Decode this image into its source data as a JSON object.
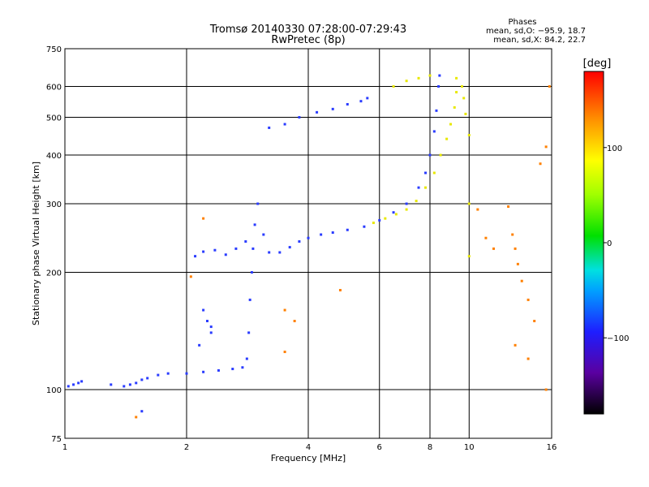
{
  "chart_data": {
    "type": "scatter",
    "title": "Tromsø 20140330 07:28:00-07:29:43",
    "subtitle": "RwPretec (8p)",
    "xlabel": "Frequency [MHz]",
    "ylabel": "Stationary phase Virtual Height [km]",
    "x_scale": "log",
    "y_scale": "log",
    "xlim": [
      1,
      16
    ],
    "ylim": [
      75,
      750
    ],
    "x_ticks": [
      1,
      2,
      4,
      6,
      8,
      10,
      16
    ],
    "y_ticks": [
      75,
      100,
      200,
      300,
      400,
      500,
      600,
      750
    ],
    "grid": true,
    "phase_stats": {
      "title": "Phases",
      "o_mode": "mean, sd,O: −95.9, 18.7",
      "x_mode": "mean, sd,X:  84.2, 22.7"
    },
    "colorbar": {
      "label": "[deg]",
      "min": -180,
      "max": 180,
      "ticks": [
        100,
        0,
        -100
      ],
      "tick_labels": [
        "100",
        "0",
        "−100"
      ]
    },
    "series": [
      {
        "mode": "O",
        "phase_deg": -100,
        "color": "#2a3cff",
        "points": [
          [
            1.02,
            102
          ],
          [
            1.05,
            103
          ],
          [
            1.08,
            104
          ],
          [
            1.1,
            105
          ],
          [
            1.3,
            103
          ],
          [
            1.4,
            102
          ],
          [
            1.45,
            103
          ],
          [
            1.5,
            104
          ],
          [
            1.55,
            106
          ],
          [
            1.6,
            107
          ],
          [
            1.7,
            109
          ],
          [
            1.8,
            110
          ],
          [
            2.0,
            110
          ],
          [
            2.2,
            111
          ],
          [
            2.4,
            112
          ],
          [
            2.6,
            113
          ],
          [
            2.75,
            114
          ],
          [
            2.82,
            120
          ],
          [
            2.85,
            140
          ],
          [
            2.87,
            170
          ],
          [
            2.9,
            200
          ],
          [
            2.92,
            230
          ],
          [
            2.95,
            265
          ],
          [
            3.0,
            300
          ],
          [
            3.1,
            250
          ],
          [
            3.2,
            225
          ],
          [
            3.4,
            225
          ],
          [
            3.6,
            232
          ],
          [
            3.8,
            240
          ],
          [
            4.0,
            245
          ],
          [
            4.3,
            250
          ],
          [
            4.6,
            253
          ],
          [
            5.0,
            257
          ],
          [
            5.5,
            262
          ],
          [
            6.0,
            272
          ],
          [
            6.5,
            285
          ],
          [
            7.0,
            300
          ],
          [
            7.5,
            330
          ],
          [
            7.8,
            360
          ],
          [
            8.0,
            400
          ],
          [
            8.2,
            460
          ],
          [
            8.3,
            520
          ],
          [
            8.4,
            600
          ],
          [
            8.45,
            640
          ],
          [
            3.2,
            470
          ],
          [
            3.5,
            480
          ],
          [
            3.8,
            500
          ],
          [
            4.2,
            515
          ],
          [
            4.6,
            525
          ],
          [
            5.0,
            540
          ],
          [
            5.4,
            550
          ],
          [
            5.6,
            560
          ],
          [
            2.1,
            220
          ],
          [
            2.2,
            226
          ],
          [
            2.35,
            228
          ],
          [
            2.5,
            222
          ],
          [
            2.65,
            230
          ],
          [
            2.8,
            240
          ],
          [
            2.2,
            160
          ],
          [
            2.25,
            150
          ],
          [
            2.3,
            145
          ],
          [
            2.15,
            130
          ],
          [
            1.55,
            88
          ],
          [
            2.3,
            140
          ]
        ]
      },
      {
        "mode": "X",
        "phase_deg": 100,
        "color": "#e8e800",
        "points": [
          [
            5.8,
            268
          ],
          [
            6.2,
            275
          ],
          [
            6.6,
            282
          ],
          [
            7.0,
            290
          ],
          [
            7.4,
            305
          ],
          [
            7.8,
            330
          ],
          [
            8.2,
            360
          ],
          [
            8.5,
            400
          ],
          [
            8.8,
            440
          ],
          [
            9.0,
            480
          ],
          [
            9.2,
            530
          ],
          [
            9.3,
            580
          ],
          [
            9.3,
            630
          ],
          [
            6.5,
            600
          ],
          [
            7.0,
            620
          ],
          [
            7.5,
            630
          ],
          [
            8.0,
            640
          ],
          [
            9.6,
            600
          ],
          [
            9.7,
            560
          ],
          [
            9.8,
            510
          ],
          [
            10.0,
            450
          ],
          [
            10.0,
            300
          ],
          [
            10.0,
            220
          ]
        ]
      },
      {
        "mode": "scatter",
        "phase_deg": 160,
        "color": "#ff8000",
        "points": [
          [
            10.5,
            290
          ],
          [
            11,
            245
          ],
          [
            11.5,
            230
          ],
          [
            12.5,
            295
          ],
          [
            12.8,
            250
          ],
          [
            13,
            230
          ],
          [
            13.2,
            210
          ],
          [
            13.5,
            190
          ],
          [
            14,
            170
          ],
          [
            14.5,
            150
          ],
          [
            13,
            130
          ],
          [
            14,
            120
          ],
          [
            15.5,
            420
          ],
          [
            15,
            380
          ],
          [
            15.8,
            600
          ],
          [
            15.5,
            100
          ],
          [
            1.5,
            85
          ],
          [
            3.5,
            160
          ],
          [
            3.7,
            150
          ],
          [
            3.5,
            125
          ],
          [
            2.05,
            195
          ],
          [
            2.2,
            275
          ],
          [
            4.8,
            180
          ]
        ]
      }
    ]
  }
}
